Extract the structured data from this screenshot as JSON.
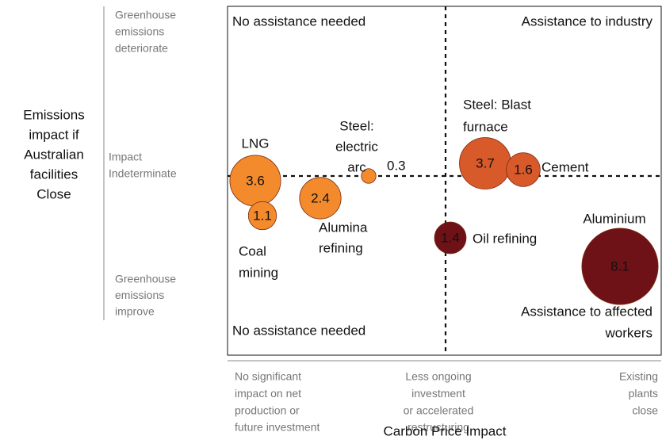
{
  "chart_data": {
    "type": "bubble",
    "y_axis_label": [
      "Emissions",
      "impact if",
      "Australian",
      "facilities",
      "Close"
    ],
    "y_regions": [
      [
        "Greenhouse",
        "emissions",
        "deteriorate"
      ],
      [
        "Impact",
        "Indeterminate"
      ],
      [
        "Greenhouse",
        "emissions",
        "improve"
      ]
    ],
    "x_regions": [
      [
        "No significant",
        "impact on net",
        "production or",
        "future investment"
      ],
      [
        "Less ongoing",
        "investment",
        "or accelerated",
        "restructuring"
      ],
      [
        "Existing",
        "plants",
        "close"
      ]
    ],
    "x_axis_label": "Carbon Price Impact",
    "quadrants": [
      {
        "label": [
          "No assistance needed"
        ],
        "color": "#f5c063"
      },
      {
        "label": [
          "Assistance to industry"
        ],
        "color": "#f08a2a"
      },
      {
        "label": [
          "No assistance needed"
        ],
        "color": "#f5c063"
      },
      {
        "label": [
          "Assistance to affected",
          "workers"
        ],
        "color": "#a8252b"
      }
    ],
    "bubbles": [
      {
        "name": [
          "LNG"
        ],
        "value": 3.6,
        "color": "#f38b2d"
      },
      {
        "name": [
          "Coal",
          "mining"
        ],
        "value": 1.1,
        "color": "#f38b2d"
      },
      {
        "name": [
          "Alumina",
          "refining"
        ],
        "value": 2.4,
        "color": "#f38b2d"
      },
      {
        "name": [
          "Steel:",
          "electric",
          "arc"
        ],
        "value": 0.3,
        "color": "#f38b2d"
      },
      {
        "name": [
          "Steel: Blast",
          "furnace"
        ],
        "value": 3.7,
        "color": "#d8592a"
      },
      {
        "name": [
          "Cement"
        ],
        "value": 1.6,
        "color": "#d8592a"
      },
      {
        "name": [
          "Oil refining"
        ],
        "value": 1.4,
        "color": "#6e1218"
      },
      {
        "name": [
          "Aluminium"
        ],
        "value": 8.1,
        "color": "#6e1218"
      }
    ]
  }
}
